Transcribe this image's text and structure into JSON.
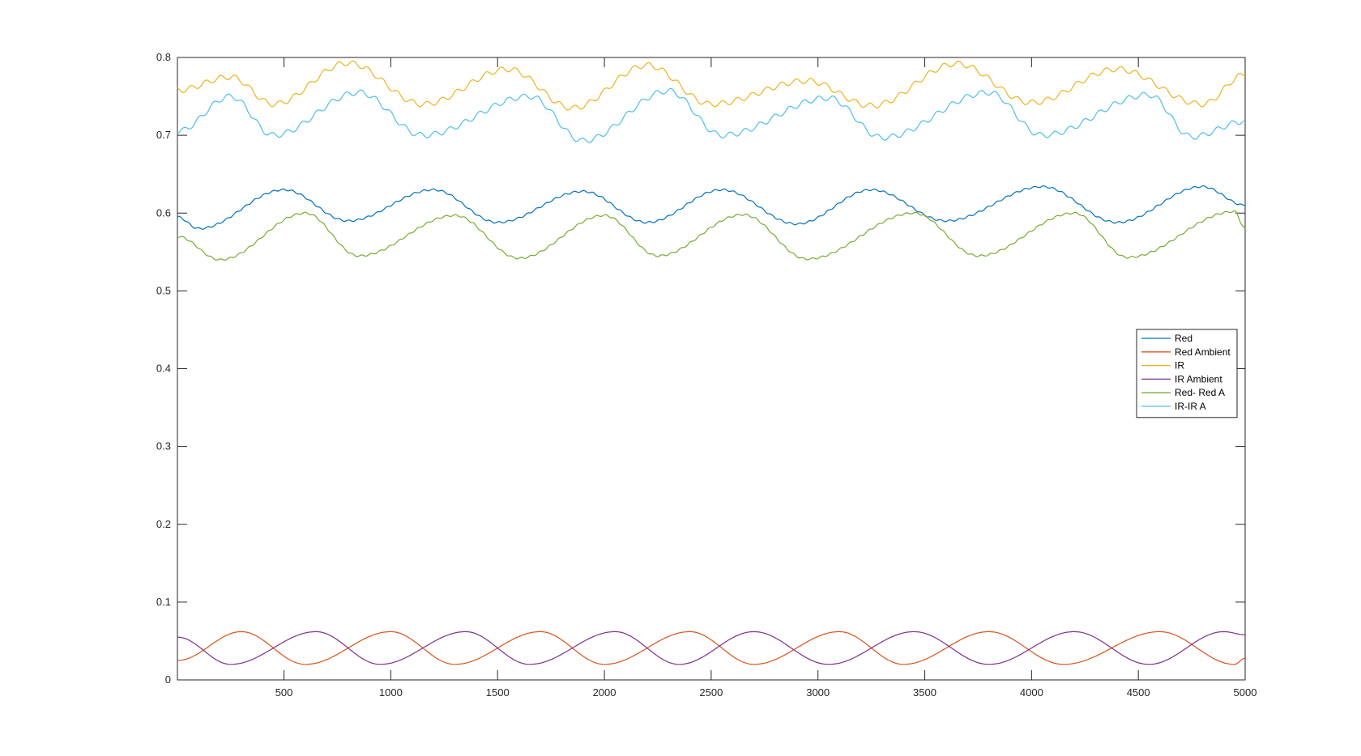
{
  "chart_data": {
    "type": "line",
    "title": "",
    "xlabel": "",
    "ylabel": "",
    "xlim": [
      1,
      5000
    ],
    "ylim": [
      0,
      0.8
    ],
    "x_ticks": [
      500,
      1000,
      1500,
      2000,
      2500,
      3000,
      3500,
      4000,
      4500,
      5000
    ],
    "y_ticks": [
      0,
      0.1,
      0.2,
      0.3,
      0.4,
      0.5,
      0.6,
      0.7,
      0.8
    ],
    "grid": false,
    "legend": "right",
    "series": [
      {
        "name": "Red",
        "color": "#0072BD",
        "x": [
          1,
          100,
          500,
          800,
          1200,
          1500,
          1900,
          2200,
          2550,
          2900,
          3250,
          3600,
          4050,
          4400,
          4800,
          5000
        ],
        "y": [
          0.595,
          0.58,
          0.63,
          0.59,
          0.63,
          0.588,
          0.628,
          0.588,
          0.63,
          0.586,
          0.63,
          0.59,
          0.634,
          0.588,
          0.634,
          0.61
        ]
      },
      {
        "name": "Red Ambient",
        "color": "#D95319",
        "x": [
          1,
          300,
          600,
          1000,
          1300,
          1700,
          2000,
          2400,
          2700,
          3100,
          3400,
          3800,
          4150,
          4600,
          4950,
          5000
        ],
        "y": [
          0.025,
          0.062,
          0.02,
          0.062,
          0.02,
          0.062,
          0.02,
          0.062,
          0.02,
          0.062,
          0.02,
          0.062,
          0.02,
          0.062,
          0.02,
          0.028
        ]
      },
      {
        "name": "IR",
        "color": "#EDB120",
        "x": [
          1,
          250,
          450,
          800,
          1150,
          1550,
          1850,
          2200,
          2500,
          2950,
          3250,
          3650,
          4000,
          4400,
          4800,
          5000
        ],
        "y": [
          0.758,
          0.775,
          0.74,
          0.793,
          0.74,
          0.785,
          0.735,
          0.79,
          0.74,
          0.77,
          0.738,
          0.792,
          0.742,
          0.785,
          0.74,
          0.778
        ]
      },
      {
        "name": "IR Ambient",
        "color": "#7E2F8E",
        "x": [
          1,
          250,
          650,
          950,
          1350,
          1650,
          2050,
          2350,
          2700,
          3050,
          3450,
          3800,
          4200,
          4550,
          4900,
          5000
        ],
        "y": [
          0.055,
          0.02,
          0.062,
          0.02,
          0.062,
          0.02,
          0.062,
          0.02,
          0.062,
          0.02,
          0.062,
          0.02,
          0.062,
          0.02,
          0.062,
          0.058
        ]
      },
      {
        "name": "Red- Red A",
        "color": "#77AC30",
        "x": [
          1,
          200,
          600,
          850,
          1300,
          1600,
          2000,
          2250,
          2650,
          2950,
          3450,
          3750,
          4200,
          4450,
          4950,
          5000
        ],
        "y": [
          0.57,
          0.54,
          0.6,
          0.545,
          0.597,
          0.542,
          0.597,
          0.545,
          0.598,
          0.541,
          0.6,
          0.545,
          0.6,
          0.543,
          0.602,
          0.58
        ]
      },
      {
        "name": "IR-IR A",
        "color": "#4DBEEE",
        "x": [
          1,
          250,
          450,
          850,
          1150,
          1650,
          1900,
          2300,
          2550,
          3050,
          3300,
          3800,
          4050,
          4550,
          4750,
          5000
        ],
        "y": [
          0.705,
          0.75,
          0.7,
          0.755,
          0.7,
          0.75,
          0.693,
          0.757,
          0.7,
          0.748,
          0.697,
          0.755,
          0.7,
          0.752,
          0.698,
          0.718
        ]
      }
    ]
  }
}
